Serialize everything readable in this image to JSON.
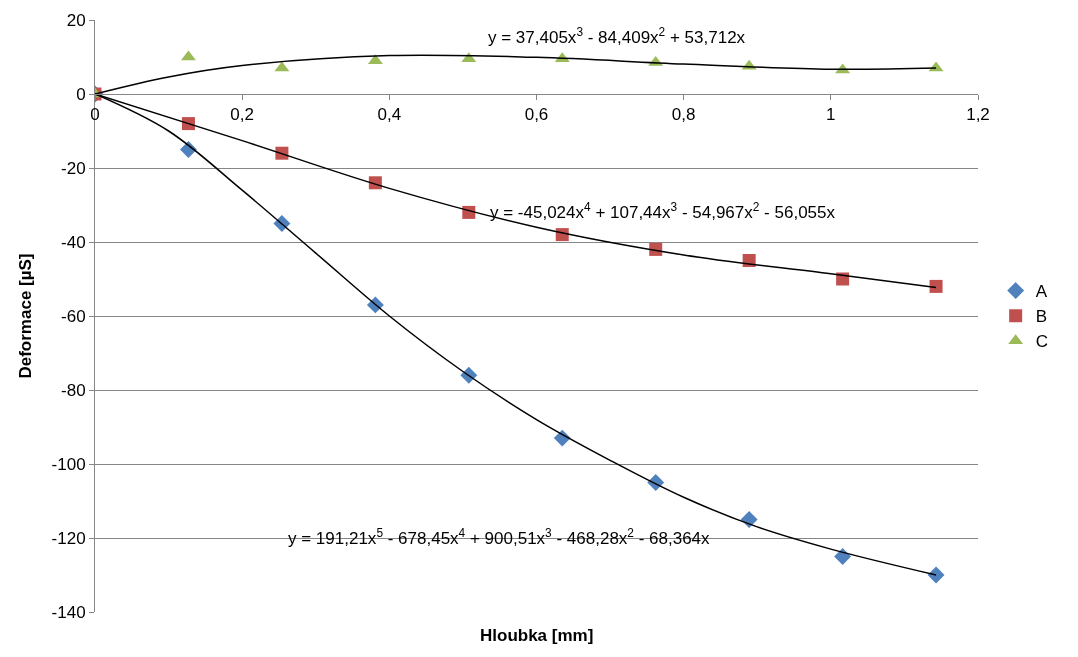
{
  "chart_data": {
    "type": "scatter",
    "xlabel": "Hloubka [mm]",
    "ylabel": "Deformace [µS]",
    "x": [
      0,
      0.127,
      0.254,
      0.381,
      0.508,
      0.635,
      0.762,
      0.889,
      1.016,
      1.143
    ],
    "series": [
      {
        "name": "A",
        "color": "#4f81bd",
        "marker": "diamond",
        "values": [
          0,
          -15,
          -35,
          -57,
          -76,
          -93,
          -105,
          -115,
          -125,
          -130
        ]
      },
      {
        "name": "B",
        "color": "#c0504d",
        "marker": "square",
        "values": [
          0,
          -8,
          -16,
          -24,
          -32,
          -38,
          -42,
          -45,
          -50,
          -52
        ]
      },
      {
        "name": "C",
        "color": "#9bbb59",
        "marker": "triangle",
        "values": [
          0,
          10,
          7,
          9,
          9.5,
          9.5,
          8.5,
          7.5,
          6.5,
          7
        ]
      },
      {
        "type": "line",
        "color": "#000000",
        "x": [
          0,
          0.1,
          0.2,
          0.3,
          0.4,
          0.5,
          0.6,
          0.7,
          0.8,
          0.9,
          1.0,
          1.143
        ],
        "values": [
          0,
          -10,
          -26,
          -43,
          -60,
          -75,
          -88,
          -99,
          -109,
          -117,
          -123,
          -130
        ]
      },
      {
        "type": "line",
        "color": "#000000",
        "x": [
          0,
          0.2,
          0.4,
          0.6,
          0.8,
          1.0,
          1.143
        ],
        "values": [
          0,
          -12.6,
          -25.5,
          -36,
          -43.5,
          -48.6,
          -52.3
        ]
      },
      {
        "type": "line",
        "color": "#000000",
        "x": [
          0,
          0.1,
          0.2,
          0.4,
          0.6,
          0.8,
          1.0,
          1.143
        ],
        "values": [
          0,
          4.6,
          7.7,
          10.4,
          9.9,
          8.1,
          6.7,
          7
        ]
      }
    ],
    "annotations": [
      "y = 191,21x$^{5}$ - 678,45x$^{4}$ + 900,51x$^{3}$ - 468,28x$^{2}$ - 68,364x",
      "y = -45,024x$^{4}$ + 107,44x$^{3}$ - 54,967x$^{2}$ - 56,055x",
      "y = 37,405x$^{3}$ - 84,409x$^{2}$ + 53,712x"
    ],
    "xlim": [
      0,
      1.2
    ],
    "xticks": [
      {
        "value": 0,
        "label": "0"
      },
      {
        "value": 0.2,
        "label": "0,2"
      },
      {
        "value": 0.4,
        "label": "0,4"
      },
      {
        "value": 0.6,
        "label": "0,6"
      },
      {
        "value": 0.8,
        "label": "0,8"
      },
      {
        "value": 1,
        "label": "1"
      },
      {
        "value": 1.2,
        "label": "1,2"
      }
    ],
    "ylim": [
      -140,
      20
    ],
    "yticks": [
      -140,
      -120,
      -100,
      -80,
      -60,
      -40,
      -20,
      0,
      20
    ],
    "grid": "y",
    "legend": "right"
  }
}
